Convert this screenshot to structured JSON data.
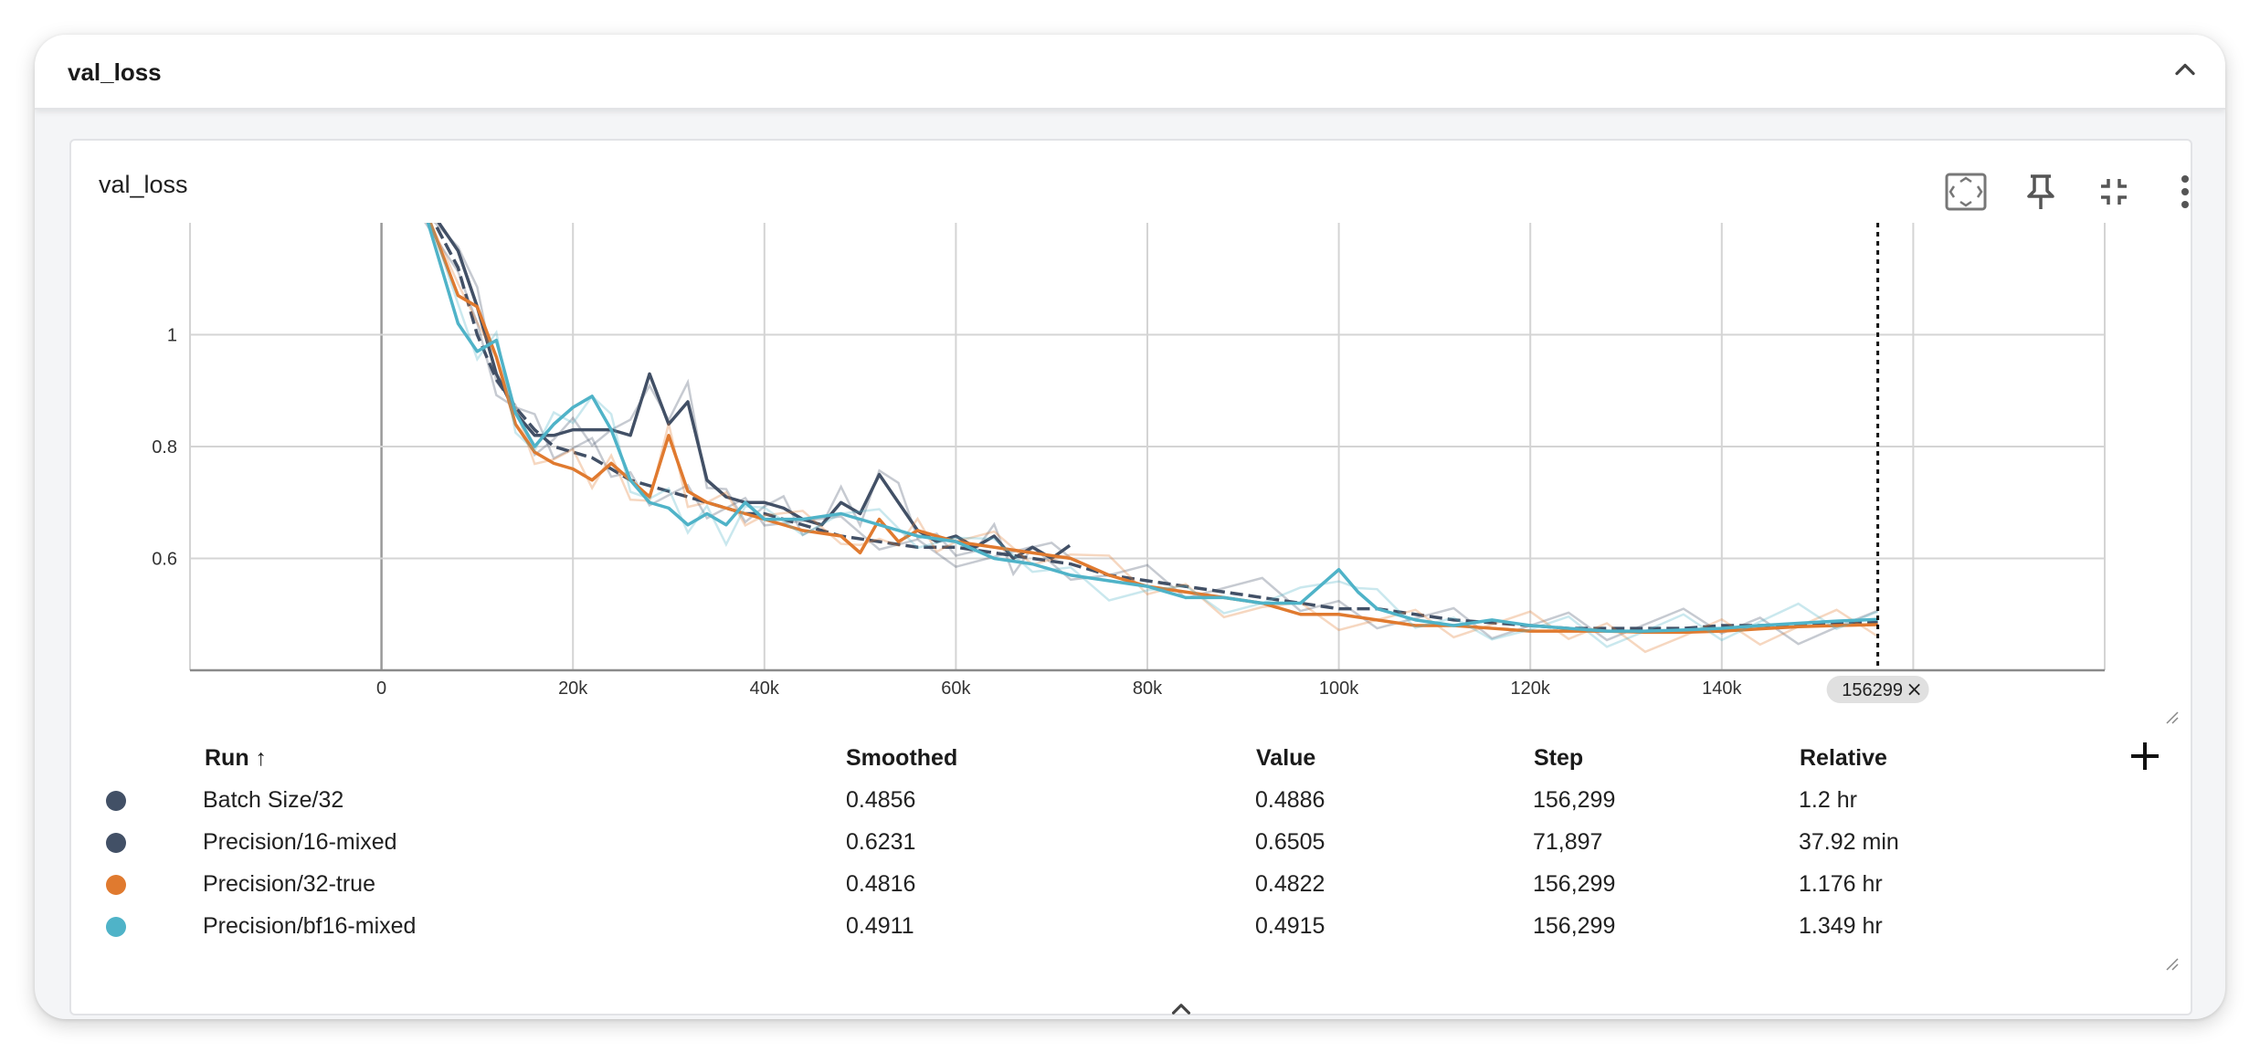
{
  "group": {
    "title": "val_loss"
  },
  "card": {
    "title": "val_loss"
  },
  "toolbar": {
    "fit_icon": "fit-to-data-icon",
    "pin_icon": "pin-icon",
    "collapse_icon": "exit-fullscreen-icon",
    "more_icon": "more-vert-icon"
  },
  "chart_data": {
    "type": "line",
    "x_ticks": [
      "0",
      "20k",
      "40k",
      "60k",
      "80k",
      "100k",
      "120k",
      "140k"
    ],
    "y_ticks": [
      "0.6",
      "0.8",
      "1"
    ],
    "xlim": [
      -20000,
      180000
    ],
    "ylim": [
      0.4,
      1.2
    ],
    "cursor": {
      "step": 156299,
      "label": "156299"
    },
    "series": [
      {
        "name": "Batch Size/32",
        "color": "#425066",
        "dash": true,
        "x": [
          4000,
          8000,
          10000,
          12000,
          14000,
          16000,
          18000,
          20000,
          22000,
          24000,
          26000,
          28000,
          30000,
          32000,
          34000,
          36000,
          38000,
          40000,
          44000,
          48000,
          52000,
          56000,
          60000,
          64000,
          68000,
          72000,
          76000,
          80000,
          84000,
          88000,
          92000,
          96000,
          100000,
          104000,
          108000,
          112000,
          116000,
          120000,
          124000,
          128000,
          132000,
          136000,
          140000,
          144000,
          148000,
          152000,
          156299
        ],
        "y": [
          1.25,
          1.12,
          1.0,
          0.92,
          0.87,
          0.83,
          0.8,
          0.79,
          0.78,
          0.76,
          0.74,
          0.73,
          0.72,
          0.71,
          0.7,
          0.69,
          0.68,
          0.68,
          0.66,
          0.64,
          0.63,
          0.62,
          0.62,
          0.61,
          0.6,
          0.59,
          0.57,
          0.56,
          0.55,
          0.54,
          0.53,
          0.52,
          0.51,
          0.51,
          0.5,
          0.49,
          0.485,
          0.48,
          0.475,
          0.475,
          0.475,
          0.475,
          0.48,
          0.48,
          0.482,
          0.484,
          0.4856
        ]
      },
      {
        "name": "Precision/16-mixed",
        "color": "#425066",
        "dash": false,
        "x": [
          4000,
          8000,
          10000,
          12000,
          14000,
          16000,
          18000,
          20000,
          22000,
          24000,
          26000,
          28000,
          30000,
          32000,
          34000,
          36000,
          38000,
          40000,
          42000,
          44000,
          46000,
          48000,
          50000,
          52000,
          54000,
          56000,
          58000,
          60000,
          62000,
          64000,
          66000,
          68000,
          70000,
          71897
        ],
        "y": [
          1.25,
          1.15,
          1.05,
          0.93,
          0.86,
          0.82,
          0.82,
          0.83,
          0.83,
          0.83,
          0.82,
          0.93,
          0.84,
          0.88,
          0.74,
          0.71,
          0.7,
          0.7,
          0.69,
          0.67,
          0.66,
          0.7,
          0.68,
          0.75,
          0.7,
          0.65,
          0.63,
          0.64,
          0.62,
          0.64,
          0.6,
          0.62,
          0.6,
          0.6231
        ]
      },
      {
        "name": "Precision/32-true",
        "color": "#e07a2f",
        "dash": false,
        "x": [
          4000,
          8000,
          10000,
          12000,
          14000,
          16000,
          18000,
          20000,
          22000,
          24000,
          26000,
          28000,
          30000,
          32000,
          34000,
          36000,
          38000,
          40000,
          44000,
          48000,
          50000,
          52000,
          54000,
          56000,
          58000,
          60000,
          64000,
          68000,
          72000,
          76000,
          80000,
          84000,
          88000,
          92000,
          96000,
          100000,
          104000,
          108000,
          112000,
          116000,
          120000,
          124000,
          128000,
          132000,
          136000,
          140000,
          144000,
          148000,
          152000,
          156299
        ],
        "y": [
          1.25,
          1.07,
          1.05,
          0.96,
          0.84,
          0.79,
          0.77,
          0.76,
          0.74,
          0.77,
          0.74,
          0.71,
          0.82,
          0.72,
          0.7,
          0.69,
          0.68,
          0.67,
          0.65,
          0.64,
          0.61,
          0.67,
          0.63,
          0.65,
          0.64,
          0.63,
          0.62,
          0.61,
          0.6,
          0.57,
          0.55,
          0.54,
          0.53,
          0.52,
          0.5,
          0.5,
          0.49,
          0.48,
          0.48,
          0.475,
          0.47,
          0.47,
          0.47,
          0.468,
          0.468,
          0.47,
          0.474,
          0.478,
          0.48,
          0.4816
        ]
      },
      {
        "name": "Precision/bf16-mixed",
        "color": "#4fb3c8",
        "dash": false,
        "x": [
          4000,
          8000,
          10000,
          12000,
          14000,
          16000,
          18000,
          20000,
          22000,
          24000,
          26000,
          28000,
          30000,
          32000,
          34000,
          36000,
          38000,
          40000,
          44000,
          48000,
          52000,
          56000,
          60000,
          64000,
          68000,
          72000,
          76000,
          80000,
          84000,
          88000,
          92000,
          96000,
          100000,
          102000,
          104000,
          108000,
          112000,
          116000,
          120000,
          124000,
          128000,
          132000,
          136000,
          140000,
          144000,
          148000,
          152000,
          156299
        ],
        "y": [
          1.25,
          1.02,
          0.97,
          0.99,
          0.86,
          0.8,
          0.84,
          0.87,
          0.89,
          0.83,
          0.74,
          0.7,
          0.69,
          0.66,
          0.68,
          0.66,
          0.7,
          0.67,
          0.67,
          0.68,
          0.66,
          0.64,
          0.63,
          0.6,
          0.59,
          0.57,
          0.56,
          0.55,
          0.53,
          0.53,
          0.52,
          0.52,
          0.58,
          0.54,
          0.51,
          0.49,
          0.48,
          0.49,
          0.48,
          0.475,
          0.47,
          0.47,
          0.472,
          0.475,
          0.48,
          0.484,
          0.488,
          0.4911
        ]
      }
    ]
  },
  "legend": {
    "headers": {
      "run": "Run ↑",
      "smoothed": "Smoothed",
      "value": "Value",
      "step": "Step",
      "relative": "Relative"
    },
    "rows": [
      {
        "run": "Batch Size/32",
        "smoothed": "0.4856",
        "value": "0.4886",
        "step": "156,299",
        "relative": "1.2 hr",
        "color": "#425066"
      },
      {
        "run": "Precision/16-mixed",
        "smoothed": "0.6231",
        "value": "0.6505",
        "step": "71,897",
        "relative": "37.92 min",
        "color": "#425066"
      },
      {
        "run": "Precision/32-true",
        "smoothed": "0.4816",
        "value": "0.4822",
        "step": "156,299",
        "relative": "1.176 hr",
        "color": "#e07a2f"
      },
      {
        "run": "Precision/bf16-mixed",
        "smoothed": "0.4911",
        "value": "0.4915",
        "step": "156,299",
        "relative": "1.349 hr",
        "color": "#4fb3c8"
      }
    ]
  }
}
